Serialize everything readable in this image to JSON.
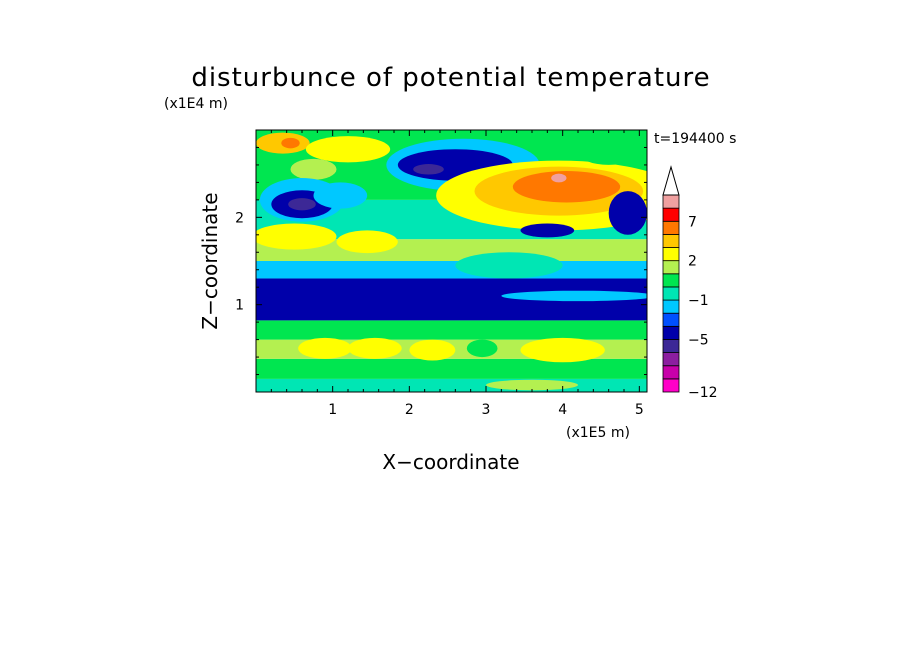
{
  "chart_data": {
    "type": "heatmap",
    "title": "disturbunce of potential temperature",
    "time_label": "t=194400 s",
    "xlabel": "X−coordinate",
    "ylabel": "Z−coordinate",
    "x_unit": "(x1E5 m)",
    "y_unit": "(x1E4 m)",
    "xlim": [
      0,
      5.1
    ],
    "ylim": [
      0,
      3.0
    ],
    "x_ticks": [
      1,
      2,
      3,
      4,
      5
    ],
    "x_tick_labels": [
      "1",
      "2",
      "3",
      "4",
      "5"
    ],
    "y_ticks": [
      1,
      2
    ],
    "y_tick_labels": [
      "1",
      "2"
    ],
    "grid": false,
    "colorbar": {
      "placement": "right",
      "levels": [
        -12,
        -11,
        -9,
        -7,
        -5,
        -4,
        -3,
        -1,
        0,
        1,
        2,
        3,
        5,
        7,
        9,
        10
      ],
      "colors": [
        "#ff00c8",
        "#c800aa",
        "#8c1ea0",
        "#3c2896",
        "#0000aa",
        "#0050ff",
        "#00c8ff",
        "#00e6b4",
        "#00e650",
        "#b4f050",
        "#ffff00",
        "#ffc800",
        "#ff7800",
        "#ff0000",
        "#f0a0a0"
      ],
      "labeled_levels": [
        -12,
        -5,
        -1,
        2,
        7
      ],
      "tick_labels": [
        "−12",
        "−5",
        "−1",
        "2",
        "7"
      ],
      "extend_top": true
    },
    "bands": [
      {
        "z_bottom": 0.0,
        "z_top": 0.15,
        "value": -0.5
      },
      {
        "z_bottom": 0.15,
        "z_top": 0.38,
        "value": 0.5
      },
      {
        "z_bottom": 0.38,
        "z_top": 0.6,
        "value": 1.5
      },
      {
        "z_bottom": 0.6,
        "z_top": 0.82,
        "value": 0.5
      },
      {
        "z_bottom": 0.82,
        "z_top": 1.3,
        "value": -4.5
      },
      {
        "z_bottom": 1.3,
        "z_top": 1.5,
        "value": -2.0
      },
      {
        "z_bottom": 1.5,
        "z_top": 1.75,
        "value": 1.5
      },
      {
        "z_bottom": 1.75,
        "z_top": 2.2,
        "value": -0.5
      },
      {
        "z_bottom": 2.2,
        "z_top": 3.0,
        "value": 0.5
      }
    ],
    "features": [
      {
        "x": 0.35,
        "z": 2.85,
        "rx": 0.35,
        "rz": 0.12,
        "value": 3.0
      },
      {
        "x": 0.45,
        "z": 2.85,
        "rx": 0.12,
        "rz": 0.06,
        "value": 6.0
      },
      {
        "x": 0.75,
        "z": 2.55,
        "rx": 0.3,
        "rz": 0.12,
        "value": 1.5
      },
      {
        "x": 1.2,
        "z": 2.78,
        "rx": 0.55,
        "rz": 0.15,
        "value": 2.0
      },
      {
        "x": 0.6,
        "z": 2.2,
        "rx": 0.55,
        "rz": 0.25,
        "value": -2.0
      },
      {
        "x": 0.6,
        "z": 2.15,
        "rx": 0.4,
        "rz": 0.16,
        "value": -4.5
      },
      {
        "x": 0.6,
        "z": 2.15,
        "rx": 0.18,
        "rz": 0.07,
        "value": -7.0
      },
      {
        "x": 1.1,
        "z": 2.25,
        "rx": 0.35,
        "rz": 0.15,
        "value": -2.0
      },
      {
        "x": 0.5,
        "z": 1.78,
        "rx": 0.55,
        "rz": 0.15,
        "value": 2.5
      },
      {
        "x": 1.45,
        "z": 1.72,
        "rx": 0.4,
        "rz": 0.13,
        "value": 2.0
      },
      {
        "x": 2.7,
        "z": 2.6,
        "rx": 1.0,
        "rz": 0.3,
        "value": -2.0
      },
      {
        "x": 2.6,
        "z": 2.6,
        "rx": 0.75,
        "rz": 0.18,
        "value": -4.5
      },
      {
        "x": 2.25,
        "z": 2.55,
        "rx": 0.2,
        "rz": 0.06,
        "value": -7.0
      },
      {
        "x": 3.95,
        "z": 2.25,
        "rx": 1.6,
        "rz": 0.4,
        "value": 2.0
      },
      {
        "x": 3.95,
        "z": 2.3,
        "rx": 1.1,
        "rz": 0.28,
        "value": 4.0
      },
      {
        "x": 4.05,
        "z": 2.35,
        "rx": 0.7,
        "rz": 0.18,
        "value": 6.0
      },
      {
        "x": 3.95,
        "z": 2.45,
        "rx": 0.1,
        "rz": 0.05,
        "value": 9.5
      },
      {
        "x": 3.8,
        "z": 1.85,
        "rx": 0.35,
        "rz": 0.08,
        "value": -4.5
      },
      {
        "x": 4.85,
        "z": 2.05,
        "rx": 0.25,
        "rz": 0.25,
        "value": -4.5
      },
      {
        "x": 4.6,
        "z": 2.75,
        "rx": 0.4,
        "rz": 0.15,
        "value": 0.5
      },
      {
        "x": 3.3,
        "z": 1.45,
        "rx": 0.7,
        "rz": 0.15,
        "value": -0.5
      },
      {
        "x": 4.2,
        "z": 1.1,
        "rx": 1.0,
        "rz": 0.06,
        "value": -2.0
      },
      {
        "x": 0.9,
        "z": 0.5,
        "rx": 0.35,
        "rz": 0.12,
        "value": 2.0
      },
      {
        "x": 1.55,
        "z": 0.5,
        "rx": 0.35,
        "rz": 0.12,
        "value": 2.0
      },
      {
        "x": 2.3,
        "z": 0.48,
        "rx": 0.3,
        "rz": 0.12,
        "value": 2.0
      },
      {
        "x": 4.0,
        "z": 0.48,
        "rx": 0.55,
        "rz": 0.14,
        "value": 2.5
      },
      {
        "x": 2.95,
        "z": 0.5,
        "rx": 0.2,
        "rz": 0.1,
        "value": 0.5
      },
      {
        "x": 1.5,
        "z": 0.05,
        "rx": 1.3,
        "rz": 0.06,
        "value": -0.5
      },
      {
        "x": 3.6,
        "z": 0.08,
        "rx": 0.6,
        "rz": 0.06,
        "value": 1.5
      }
    ]
  }
}
